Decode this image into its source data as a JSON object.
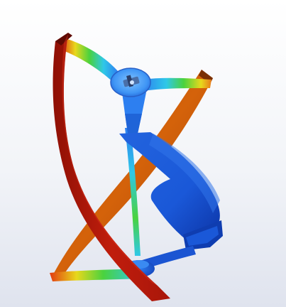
{
  "scene": {
    "background_top": "#ffffff",
    "background_bottom": "#dfe3ee",
    "colors": {
      "red": "#c01d0c",
      "red_dark": "#8f1005",
      "orange": "#d4620a",
      "orange_dark": "#a04306",
      "blue": "#1a58d8",
      "blue_dark": "#0c34a6",
      "blue_light": "#2d7ff0",
      "cyan": "#2fc8e8",
      "green": "#4ad23e",
      "yellow": "#e8d81c"
    }
  }
}
